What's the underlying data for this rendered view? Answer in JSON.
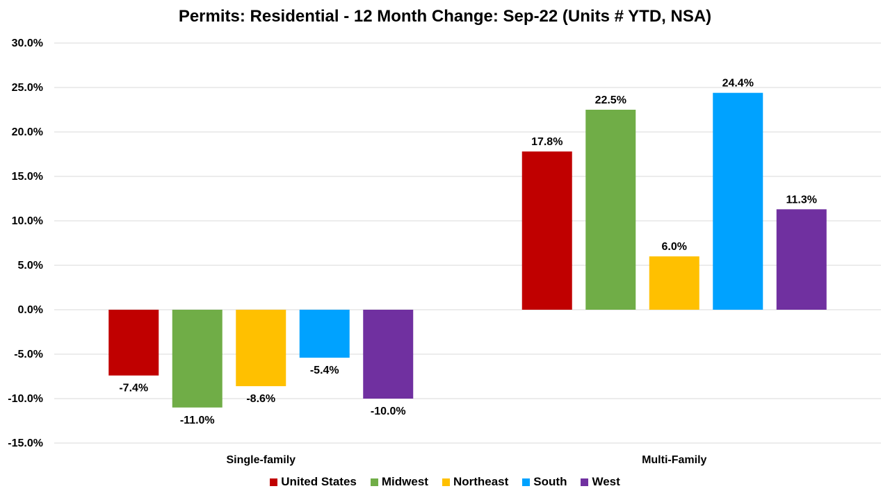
{
  "chart_data": {
    "type": "bar",
    "title": "Permits: Residential - 12 Month Change:  Sep-22 (Units # YTD, NSA)",
    "categories": [
      "Single-family",
      "Multi-Family"
    ],
    "series": [
      {
        "name": "United States",
        "color": "#C00000",
        "values": [
          -7.4,
          17.8
        ],
        "labels": [
          "-7.4%",
          "17.8%"
        ]
      },
      {
        "name": "Midwest",
        "color": "#70AD47",
        "values": [
          -11.0,
          22.5
        ],
        "labels": [
          "-11.0%",
          "22.5%"
        ]
      },
      {
        "name": "Northeast",
        "color": "#FFC000",
        "values": [
          -8.6,
          6.0
        ],
        "labels": [
          "-8.6%",
          "6.0%"
        ]
      },
      {
        "name": "South",
        "color": "#00A2FF",
        "values": [
          -5.4,
          24.4
        ],
        "labels": [
          "-5.4%",
          "24.4%"
        ]
      },
      {
        "name": "West",
        "color": "#7030A0",
        "values": [
          -10.0,
          11.3
        ],
        "labels": [
          "-10.0%",
          "11.3%"
        ]
      }
    ],
    "ylim": [
      -15,
      30
    ],
    "yticks": [
      30,
      25,
      20,
      15,
      10,
      5,
      0,
      -5,
      -10,
      -15
    ],
    "ytick_labels": [
      "30.0%",
      "25.0%",
      "20.0%",
      "15.0%",
      "10.0%",
      "5.0%",
      "0.0%",
      "-5.0%",
      "-10.0%",
      "-15.0%"
    ],
    "xlabel": "",
    "ylabel": "",
    "grid": true,
    "legend_position": "bottom"
  }
}
